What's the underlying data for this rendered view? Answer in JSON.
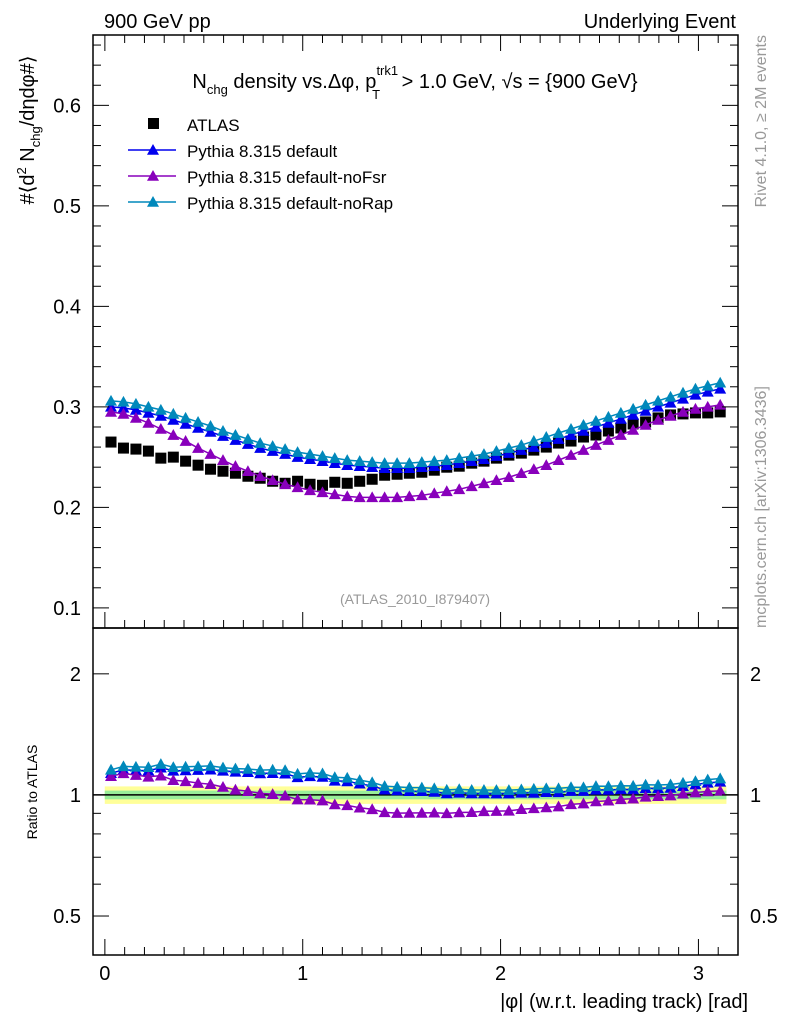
{
  "header": {
    "left": "900 GeV pp",
    "right": "Underlying Event"
  },
  "side_text": {
    "rivet": "Rivet 4.1.0, ≥ 2M events",
    "mcplots": "mcplots.cern.ch [arXiv:1306.3436]"
  },
  "watermark": "(ATLAS_2010_I879407)",
  "title_parts": {
    "n": "N",
    "chg": "chg",
    "mid": " density vs.Δφ, p",
    "sup": "trk1",
    "sub": "T",
    "end": " > 1.0 GeV, √s = {900 GeV}"
  },
  "ylabel_parts": {
    "a": "#⟨d",
    "sup": "2",
    "b": " N",
    "sub": "chg",
    "c": "/dηdφ#⟩"
  },
  "chart_data": {
    "type": "scatter",
    "title": "N_chg density vs. Δφ, p_T^trk1 > 1.0 GeV, √s = {900 GeV}",
    "xlabel": "|φ| (w.r.t. leading track) [rad]",
    "ylabel": "#⟨d² N_chg/dηdφ#⟩",
    "ratio_ylabel": "Ratio to ATLAS",
    "xlim": [
      -0.06,
      3.2
    ],
    "ylim": [
      0.08,
      0.67
    ],
    "ratio_ylim": [
      0.4,
      2.6
    ],
    "ratio_scale": "log",
    "xticks": [
      "0",
      "1",
      "2",
      "3"
    ],
    "xtick_values": [
      0,
      1,
      2,
      3
    ],
    "yticks": [
      "0.1",
      "0.2",
      "0.3",
      "0.4",
      "0.5",
      "0.6"
    ],
    "ytick_values": [
      0.1,
      0.2,
      0.3,
      0.4,
      0.5,
      0.6
    ],
    "ratio_ticks": [
      "0.5",
      "1",
      "2"
    ],
    "ratio_tick_values": [
      0.5,
      1,
      2
    ],
    "legend_position": "top-left",
    "atlas_rel_err_stat": 0.025,
    "atlas_rel_err_total": 0.05,
    "x": [
      0.031,
      0.094,
      0.157,
      0.22,
      0.283,
      0.346,
      0.408,
      0.471,
      0.534,
      0.597,
      0.66,
      0.723,
      0.785,
      0.848,
      0.911,
      0.974,
      1.037,
      1.1,
      1.162,
      1.225,
      1.288,
      1.351,
      1.414,
      1.477,
      1.539,
      1.602,
      1.665,
      1.728,
      1.791,
      1.854,
      1.916,
      1.979,
      2.042,
      2.105,
      2.168,
      2.231,
      2.293,
      2.356,
      2.419,
      2.482,
      2.545,
      2.608,
      2.67,
      2.733,
      2.796,
      2.859,
      2.922,
      2.985,
      3.047,
      3.11
    ],
    "series": [
      {
        "name": "ATLAS",
        "color": "#000000",
        "marker": "square",
        "values": [
          0.265,
          0.259,
          0.258,
          0.256,
          0.249,
          0.25,
          0.246,
          0.242,
          0.238,
          0.236,
          0.234,
          0.231,
          0.229,
          0.226,
          0.224,
          0.226,
          0.223,
          0.222,
          0.225,
          0.224,
          0.226,
          0.228,
          0.232,
          0.233,
          0.234,
          0.235,
          0.237,
          0.24,
          0.241,
          0.244,
          0.246,
          0.249,
          0.252,
          0.254,
          0.257,
          0.26,
          0.264,
          0.266,
          0.27,
          0.272,
          0.276,
          0.279,
          0.283,
          0.285,
          0.289,
          0.292,
          0.293,
          0.294,
          0.294,
          0.295
        ]
      },
      {
        "name": "Pythia 8.315 default",
        "color": "#0000ee",
        "marker": "triangle",
        "values": [
          0.3,
          0.299,
          0.297,
          0.294,
          0.291,
          0.287,
          0.283,
          0.279,
          0.275,
          0.271,
          0.267,
          0.263,
          0.259,
          0.256,
          0.253,
          0.25,
          0.248,
          0.246,
          0.244,
          0.242,
          0.241,
          0.24,
          0.239,
          0.239,
          0.239,
          0.24,
          0.241,
          0.242,
          0.244,
          0.246,
          0.248,
          0.251,
          0.254,
          0.257,
          0.26,
          0.264,
          0.268,
          0.272,
          0.276,
          0.28,
          0.284,
          0.288,
          0.292,
          0.296,
          0.3,
          0.304,
          0.308,
          0.312,
          0.315,
          0.318
        ]
      },
      {
        "name": "Pythia 8.315 default-noFsr",
        "color": "#8800bb",
        "marker": "triangle",
        "values": [
          0.295,
          0.293,
          0.289,
          0.284,
          0.278,
          0.272,
          0.266,
          0.259,
          0.253,
          0.247,
          0.241,
          0.236,
          0.231,
          0.227,
          0.223,
          0.22,
          0.217,
          0.215,
          0.213,
          0.211,
          0.21,
          0.21,
          0.21,
          0.21,
          0.211,
          0.212,
          0.214,
          0.216,
          0.218,
          0.221,
          0.224,
          0.227,
          0.23,
          0.234,
          0.238,
          0.242,
          0.247,
          0.252,
          0.257,
          0.262,
          0.267,
          0.272,
          0.277,
          0.282,
          0.287,
          0.291,
          0.295,
          0.298,
          0.3,
          0.302
        ]
      },
      {
        "name": "Pythia 8.315 default-noRap",
        "color": "#0088bb",
        "marker": "triangle",
        "values": [
          0.306,
          0.305,
          0.303,
          0.3,
          0.297,
          0.293,
          0.289,
          0.285,
          0.281,
          0.276,
          0.272,
          0.268,
          0.264,
          0.261,
          0.258,
          0.255,
          0.253,
          0.251,
          0.249,
          0.247,
          0.246,
          0.245,
          0.244,
          0.244,
          0.244,
          0.245,
          0.246,
          0.247,
          0.249,
          0.251,
          0.253,
          0.256,
          0.259,
          0.262,
          0.266,
          0.27,
          0.274,
          0.278,
          0.282,
          0.286,
          0.29,
          0.294,
          0.298,
          0.302,
          0.306,
          0.31,
          0.314,
          0.318,
          0.321,
          0.324
        ]
      }
    ]
  }
}
